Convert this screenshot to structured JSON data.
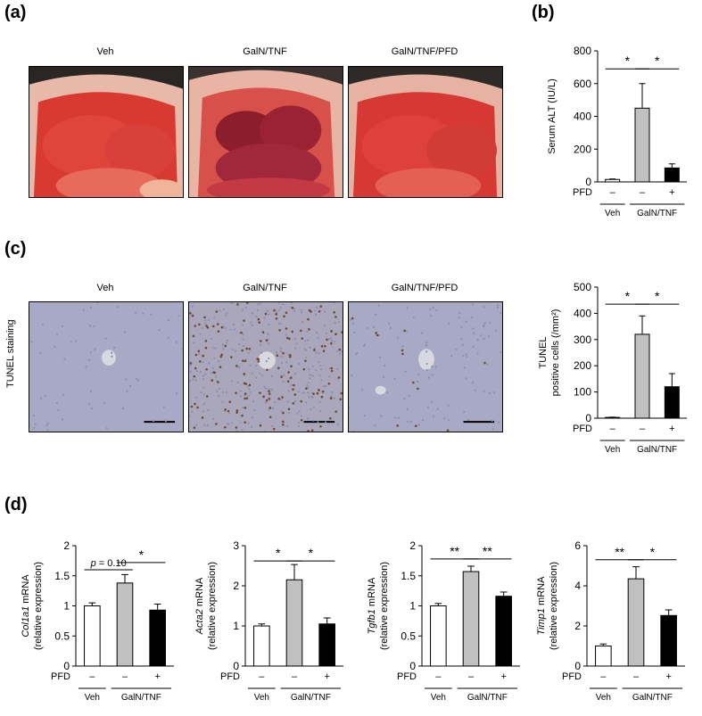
{
  "panels": {
    "a": "(a)",
    "b": "(b)",
    "c": "(c)",
    "d": "(d)"
  },
  "photo_labels": [
    "Veh",
    "GalN/TNF",
    "GalN/TNF/PFD"
  ],
  "tunel_side_label": "TUNEL  staining",
  "colors": {
    "veh": "#ffffff",
    "galn": "#c0c0c0",
    "pfd": "#000000"
  },
  "chart_data": [
    {
      "id": "alt",
      "type": "bar",
      "ylabel": "Serum ALT (IU/L)",
      "yticks": [
        "0",
        "200",
        "400",
        "600",
        "800"
      ],
      "ylim": [
        0,
        800
      ],
      "categories": [
        "Veh",
        "GalN/TNF",
        "GalN/TNF/PFD"
      ],
      "values": [
        15,
        450,
        85
      ],
      "errors": [
        3,
        150,
        25
      ],
      "pfd_label": "PFD",
      "pfd_signs": [
        "–",
        "–",
        "+"
      ],
      "group_labels": [
        "Veh",
        "GalN/TNF"
      ],
      "sig": [
        {
          "from": 0,
          "to": 1,
          "label": "*",
          "y": 690
        },
        {
          "from": 1,
          "to": 2,
          "label": "*",
          "y": 690
        }
      ]
    },
    {
      "id": "tunel",
      "type": "bar",
      "ylabel_line1": "TUNEL",
      "ylabel_line2": "positive cells (/mm²)",
      "yticks": [
        "0",
        "100",
        "200",
        "300",
        "400",
        "500"
      ],
      "ylim": [
        0,
        500
      ],
      "categories": [
        "Veh",
        "GalN/TNF",
        "GalN/TNF/PFD"
      ],
      "values": [
        3,
        320,
        120
      ],
      "errors": [
        1,
        70,
        50
      ],
      "pfd_label": "PFD",
      "pfd_signs": [
        "–",
        "–",
        "+"
      ],
      "group_labels": [
        "Veh",
        "GalN/TNF"
      ],
      "sig": [
        {
          "from": 0,
          "to": 1,
          "label": "*",
          "y": 435
        },
        {
          "from": 1,
          "to": 2,
          "label": "*",
          "y": 435
        }
      ]
    },
    {
      "id": "col1a1",
      "type": "bar",
      "gene": "Col1a1",
      "ylabel_suffix": " mRNA",
      "ylabel_line2": "(relative expression)",
      "yticks": [
        "0",
        "0.5",
        "1",
        "1.5",
        "2"
      ],
      "ylim": [
        0,
        2
      ],
      "categories": [
        "Veh",
        "GalN/TNF",
        "GalN/TNF/PFD"
      ],
      "values": [
        1.0,
        1.38,
        0.93
      ],
      "errors": [
        0.05,
        0.14,
        0.1
      ],
      "pfd_label": "PFD",
      "pfd_signs": [
        "–",
        "–",
        "+"
      ],
      "group_labels": [
        "Veh",
        "GalN/TNF"
      ],
      "sig": [
        {
          "from": 0,
          "to": 1,
          "label": "p = 0.10",
          "y": 1.6
        },
        {
          "from": 1,
          "to": 2,
          "label": "*",
          "y": 1.72
        }
      ]
    },
    {
      "id": "acta2",
      "type": "bar",
      "gene": "Acta2",
      "ylabel_suffix": " mRNA",
      "ylabel_line2": "(relative expression)",
      "yticks": [
        "0",
        "1",
        "2",
        "3"
      ],
      "ylim": [
        0,
        3
      ],
      "categories": [
        "Veh",
        "GalN/TNF",
        "GalN/TNF/PFD"
      ],
      "values": [
        1.0,
        2.15,
        1.05
      ],
      "errors": [
        0.05,
        0.38,
        0.15
      ],
      "pfd_label": "PFD",
      "pfd_signs": [
        "–",
        "–",
        "+"
      ],
      "group_labels": [
        "Veh",
        "GalN/TNF"
      ],
      "sig": [
        {
          "from": 0,
          "to": 1,
          "label": "*",
          "y": 2.62
        },
        {
          "from": 1,
          "to": 2,
          "label": "*",
          "y": 2.62
        }
      ]
    },
    {
      "id": "tgfb1",
      "type": "bar",
      "gene": "Tgfb1",
      "ylabel_suffix": " mRNA",
      "ylabel_line2": "(relative expression)",
      "yticks": [
        "0",
        "0.5",
        "1",
        "1.5",
        "2"
      ],
      "ylim": [
        0,
        2
      ],
      "categories": [
        "Veh",
        "GalN/TNF",
        "GalN/TNF/PFD"
      ],
      "values": [
        1.0,
        1.57,
        1.16
      ],
      "errors": [
        0.04,
        0.09,
        0.07
      ],
      "pfd_label": "PFD",
      "pfd_signs": [
        "–",
        "–",
        "+"
      ],
      "group_labels": [
        "Veh",
        "GalN/TNF"
      ],
      "sig": [
        {
          "from": 0,
          "to": 1,
          "label": "**",
          "y": 1.78
        },
        {
          "from": 1,
          "to": 2,
          "label": "**",
          "y": 1.78
        }
      ]
    },
    {
      "id": "timp1",
      "type": "bar",
      "gene": "Timp1",
      "ylabel_suffix": " mRNA",
      "ylabel_line2": "(relative expression)",
      "yticks": [
        "0",
        "2",
        "4",
        "6"
      ],
      "ylim": [
        0,
        6
      ],
      "categories": [
        "Veh",
        "GalN/TNF",
        "GalN/TNF/PFD"
      ],
      "values": [
        1.0,
        4.35,
        2.52
      ],
      "errors": [
        0.1,
        0.6,
        0.28
      ],
      "pfd_label": "PFD",
      "pfd_signs": [
        "–",
        "–",
        "+"
      ],
      "group_labels": [
        "Veh",
        "GalN/TNF"
      ],
      "sig": [
        {
          "from": 0,
          "to": 1,
          "label": "**",
          "y": 5.3
        },
        {
          "from": 1,
          "to": 2,
          "label": "*",
          "y": 5.3
        }
      ]
    }
  ]
}
